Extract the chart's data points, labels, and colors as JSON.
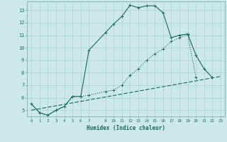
{
  "xlabel": "Humidex (Indice chaleur)",
  "ylabel": "",
  "bg_color": "#cce8e8",
  "grid_color": "#b0d4d4",
  "line_color": "#1a6b5a",
  "xlim": [
    -0.5,
    23.5
  ],
  "ylim": [
    4.5,
    13.7
  ],
  "xticks": [
    0,
    1,
    2,
    3,
    4,
    5,
    6,
    7,
    9,
    10,
    11,
    12,
    13,
    14,
    15,
    16,
    17,
    18,
    19,
    20,
    21,
    22,
    23
  ],
  "yticks": [
    5,
    6,
    7,
    8,
    9,
    10,
    11,
    12,
    13
  ],
  "line1_x": [
    0,
    1,
    2,
    3,
    4,
    5,
    6,
    7,
    9,
    10,
    11,
    12,
    13,
    14,
    15,
    16,
    17,
    18,
    19,
    20,
    21,
    22
  ],
  "line1_y": [
    5.5,
    4.8,
    4.6,
    5.0,
    5.3,
    6.1,
    6.1,
    9.8,
    11.2,
    11.9,
    12.5,
    13.4,
    13.2,
    13.35,
    13.35,
    12.8,
    10.8,
    11.0,
    11.1,
    9.4,
    8.3,
    7.6
  ],
  "line2_x": [
    0,
    1,
    2,
    3,
    4,
    5,
    6,
    7,
    9,
    10,
    11,
    12,
    13,
    14,
    15,
    16,
    17,
    18,
    19,
    20
  ],
  "line2_y": [
    5.5,
    4.8,
    4.6,
    5.0,
    5.3,
    6.1,
    6.1,
    6.2,
    6.5,
    6.6,
    7.0,
    7.8,
    8.3,
    9.0,
    9.5,
    9.9,
    10.5,
    10.8,
    11.05,
    7.6
  ],
  "line3_x": [
    0,
    23
  ],
  "line3_y": [
    5.0,
    7.7
  ]
}
